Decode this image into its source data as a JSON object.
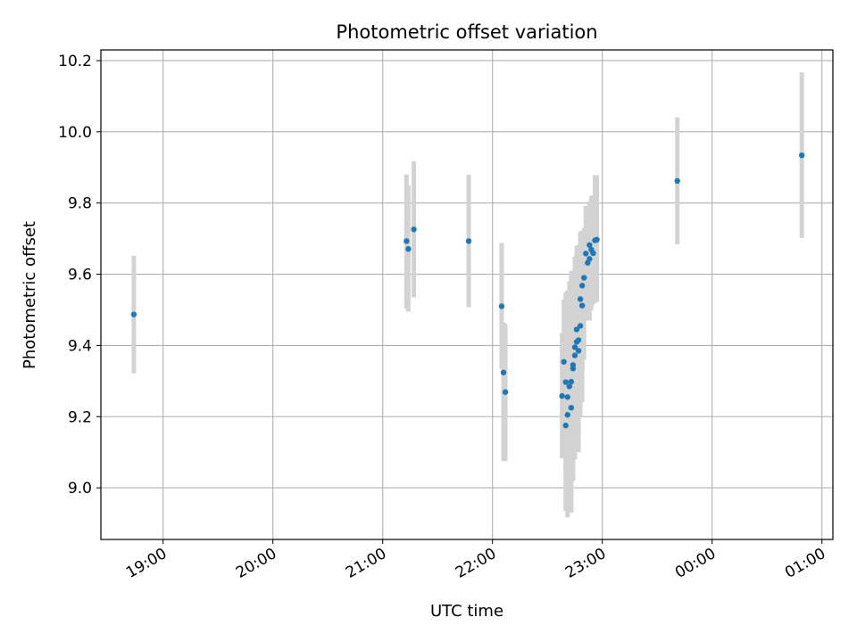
{
  "chart_data": {
    "type": "scatter",
    "title": "Photometric offset variation",
    "xlabel": "UTC time",
    "ylabel": "Photometric offset",
    "x_ticks": [
      "19:00",
      "20:00",
      "21:00",
      "22:00",
      "23:00",
      "00:00",
      "01:00"
    ],
    "y_ticks": [
      "9.0",
      "9.2",
      "9.4",
      "9.6",
      "9.8",
      "10.0",
      "10.2"
    ],
    "xlim": [
      "18:26",
      "01:06"
    ],
    "ylim": [
      8.855,
      10.23
    ],
    "grid": true,
    "series": [
      {
        "marker_color": "#1f77b4",
        "errorbar_color": "#d3d3d3",
        "points": [
          {
            "t": "18:44",
            "y": 9.487,
            "lo": 9.322,
            "hi": 9.652
          },
          {
            "t": "21:13",
            "y": 9.693,
            "lo": 9.503,
            "hi": 9.88
          },
          {
            "t": "21:14",
            "y": 9.671,
            "lo": 9.495,
            "hi": 9.85
          },
          {
            "t": "21:17",
            "y": 9.726,
            "lo": 9.535,
            "hi": 9.917
          },
          {
            "t": "21:47",
            "y": 9.693,
            "lo": 9.507,
            "hi": 9.879
          },
          {
            "t": "22:05",
            "y": 9.51,
            "lo": 9.334,
            "hi": 9.688
          },
          {
            "t": "22:06",
            "y": 9.324,
            "lo": 9.075,
            "hi": 9.464
          },
          {
            "t": "22:07",
            "y": 9.269,
            "lo": 9.075,
            "hi": 9.461
          },
          {
            "t": "22:38",
            "y": 9.258,
            "lo": 9.083,
            "hi": 9.435
          },
          {
            "t": "22:39",
            "y": 9.354,
            "lo": 9.143,
            "hi": 9.529
          },
          {
            "t": "22:40",
            "y": 9.297,
            "lo": 9.04,
            "hi": 9.55
          },
          {
            "t": "22:40",
            "y": 9.175,
            "lo": 8.935,
            "hi": 9.4
          },
          {
            "t": "22:41",
            "y": 9.205,
            "lo": 8.917,
            "hi": 9.52
          },
          {
            "t": "22:41",
            "y": 9.255,
            "lo": 8.98,
            "hi": 9.555
          },
          {
            "t": "22:42",
            "y": 9.285,
            "lo": 9.0,
            "hi": 9.58
          },
          {
            "t": "22:43",
            "y": 9.298,
            "lo": 9.01,
            "hi": 9.61
          },
          {
            "t": "22:43",
            "y": 9.225,
            "lo": 8.93,
            "hi": 9.5
          },
          {
            "t": "22:44",
            "y": 9.335,
            "lo": 9.02,
            "hi": 9.54
          },
          {
            "t": "22:44",
            "y": 9.345,
            "lo": 9.04,
            "hi": 9.58
          },
          {
            "t": "22:45",
            "y": 9.372,
            "lo": 9.08,
            "hi": 9.6
          },
          {
            "t": "22:45",
            "y": 9.395,
            "lo": 9.1,
            "hi": 9.65
          },
          {
            "t": "22:46",
            "y": 9.445,
            "lo": 9.15,
            "hi": 9.68
          },
          {
            "t": "22:46",
            "y": 9.41,
            "lo": 9.12,
            "hi": 9.665
          },
          {
            "t": "22:47",
            "y": 9.385,
            "lo": 9.1,
            "hi": 9.675
          },
          {
            "t": "22:47",
            "y": 9.415,
            "lo": 9.155,
            "hi": 9.682
          },
          {
            "t": "22:48",
            "y": 9.455,
            "lo": 9.2,
            "hi": 9.7
          },
          {
            "t": "22:48",
            "y": 9.53,
            "lo": 9.275,
            "hi": 9.72
          },
          {
            "t": "22:49",
            "y": 9.512,
            "lo": 9.24,
            "hi": 9.722
          },
          {
            "t": "22:49",
            "y": 9.568,
            "lo": 9.33,
            "hi": 9.722
          },
          {
            "t": "22:50",
            "y": 9.59,
            "lo": 9.36,
            "hi": 9.73
          },
          {
            "t": "22:51",
            "y": 9.658,
            "lo": 9.48,
            "hi": 9.792
          },
          {
            "t": "22:52",
            "y": 9.632,
            "lo": 9.47,
            "hi": 9.79
          },
          {
            "t": "22:53",
            "y": 9.682,
            "lo": 9.5,
            "hi": 9.805
          },
          {
            "t": "22:53",
            "y": 9.643,
            "lo": 9.47,
            "hi": 9.78
          },
          {
            "t": "22:54",
            "y": 9.669,
            "lo": 9.5,
            "hi": 9.82
          },
          {
            "t": "22:55",
            "y": 9.659,
            "lo": 9.515,
            "hi": 9.822
          },
          {
            "t": "22:56",
            "y": 9.695,
            "lo": 9.52,
            "hi": 9.878
          },
          {
            "t": "22:57",
            "y": 9.697,
            "lo": 9.522,
            "hi": 9.878
          },
          {
            "t": "23:41",
            "y": 9.862,
            "lo": 9.684,
            "hi": 10.041
          },
          {
            "t": "00:49",
            "y": 9.934,
            "lo": 9.702,
            "hi": 10.167
          }
        ]
      }
    ]
  }
}
